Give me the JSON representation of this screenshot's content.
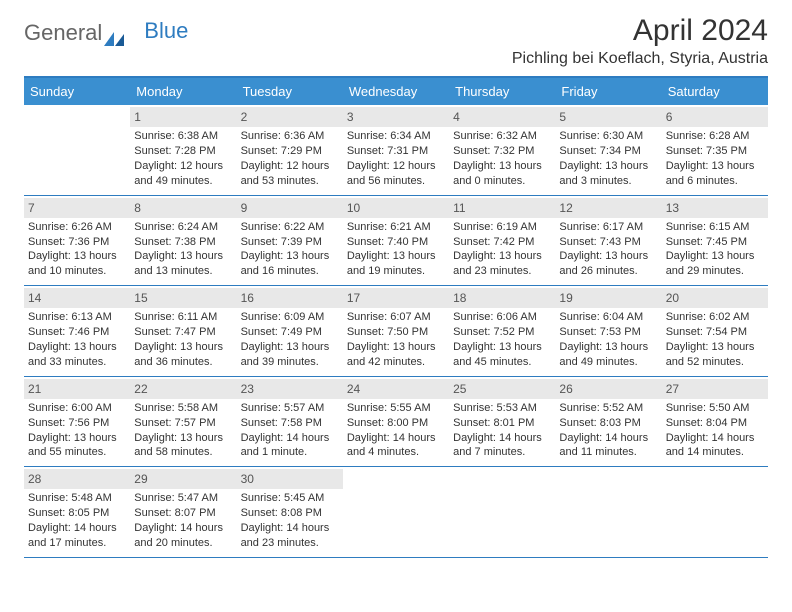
{
  "brand": {
    "part1": "General",
    "part2": "Blue"
  },
  "title": "April 2024",
  "location": "Pichling bei Koeflach, Styria, Austria",
  "colors": {
    "accent": "#3a8fd0",
    "accent_border": "#2e7cc0",
    "daynum_bg": "#e8e8e8",
    "text": "#333333",
    "bg": "#ffffff"
  },
  "day_names": [
    "Sunday",
    "Monday",
    "Tuesday",
    "Wednesday",
    "Thursday",
    "Friday",
    "Saturday"
  ],
  "weeks": [
    [
      null,
      {
        "n": "1",
        "sunrise": "6:38 AM",
        "sunset": "7:28 PM",
        "daylight": "12 hours and 49 minutes."
      },
      {
        "n": "2",
        "sunrise": "6:36 AM",
        "sunset": "7:29 PM",
        "daylight": "12 hours and 53 minutes."
      },
      {
        "n": "3",
        "sunrise": "6:34 AM",
        "sunset": "7:31 PM",
        "daylight": "12 hours and 56 minutes."
      },
      {
        "n": "4",
        "sunrise": "6:32 AM",
        "sunset": "7:32 PM",
        "daylight": "13 hours and 0 minutes."
      },
      {
        "n": "5",
        "sunrise": "6:30 AM",
        "sunset": "7:34 PM",
        "daylight": "13 hours and 3 minutes."
      },
      {
        "n": "6",
        "sunrise": "6:28 AM",
        "sunset": "7:35 PM",
        "daylight": "13 hours and 6 minutes."
      }
    ],
    [
      {
        "n": "7",
        "sunrise": "6:26 AM",
        "sunset": "7:36 PM",
        "daylight": "13 hours and 10 minutes."
      },
      {
        "n": "8",
        "sunrise": "6:24 AM",
        "sunset": "7:38 PM",
        "daylight": "13 hours and 13 minutes."
      },
      {
        "n": "9",
        "sunrise": "6:22 AM",
        "sunset": "7:39 PM",
        "daylight": "13 hours and 16 minutes."
      },
      {
        "n": "10",
        "sunrise": "6:21 AM",
        "sunset": "7:40 PM",
        "daylight": "13 hours and 19 minutes."
      },
      {
        "n": "11",
        "sunrise": "6:19 AM",
        "sunset": "7:42 PM",
        "daylight": "13 hours and 23 minutes."
      },
      {
        "n": "12",
        "sunrise": "6:17 AM",
        "sunset": "7:43 PM",
        "daylight": "13 hours and 26 minutes."
      },
      {
        "n": "13",
        "sunrise": "6:15 AM",
        "sunset": "7:45 PM",
        "daylight": "13 hours and 29 minutes."
      }
    ],
    [
      {
        "n": "14",
        "sunrise": "6:13 AM",
        "sunset": "7:46 PM",
        "daylight": "13 hours and 33 minutes."
      },
      {
        "n": "15",
        "sunrise": "6:11 AM",
        "sunset": "7:47 PM",
        "daylight": "13 hours and 36 minutes."
      },
      {
        "n": "16",
        "sunrise": "6:09 AM",
        "sunset": "7:49 PM",
        "daylight": "13 hours and 39 minutes."
      },
      {
        "n": "17",
        "sunrise": "6:07 AM",
        "sunset": "7:50 PM",
        "daylight": "13 hours and 42 minutes."
      },
      {
        "n": "18",
        "sunrise": "6:06 AM",
        "sunset": "7:52 PM",
        "daylight": "13 hours and 45 minutes."
      },
      {
        "n": "19",
        "sunrise": "6:04 AM",
        "sunset": "7:53 PM",
        "daylight": "13 hours and 49 minutes."
      },
      {
        "n": "20",
        "sunrise": "6:02 AM",
        "sunset": "7:54 PM",
        "daylight": "13 hours and 52 minutes."
      }
    ],
    [
      {
        "n": "21",
        "sunrise": "6:00 AM",
        "sunset": "7:56 PM",
        "daylight": "13 hours and 55 minutes."
      },
      {
        "n": "22",
        "sunrise": "5:58 AM",
        "sunset": "7:57 PM",
        "daylight": "13 hours and 58 minutes."
      },
      {
        "n": "23",
        "sunrise": "5:57 AM",
        "sunset": "7:58 PM",
        "daylight": "14 hours and 1 minute."
      },
      {
        "n": "24",
        "sunrise": "5:55 AM",
        "sunset": "8:00 PM",
        "daylight": "14 hours and 4 minutes."
      },
      {
        "n": "25",
        "sunrise": "5:53 AM",
        "sunset": "8:01 PM",
        "daylight": "14 hours and 7 minutes."
      },
      {
        "n": "26",
        "sunrise": "5:52 AM",
        "sunset": "8:03 PM",
        "daylight": "14 hours and 11 minutes."
      },
      {
        "n": "27",
        "sunrise": "5:50 AM",
        "sunset": "8:04 PM",
        "daylight": "14 hours and 14 minutes."
      }
    ],
    [
      {
        "n": "28",
        "sunrise": "5:48 AM",
        "sunset": "8:05 PM",
        "daylight": "14 hours and 17 minutes."
      },
      {
        "n": "29",
        "sunrise": "5:47 AM",
        "sunset": "8:07 PM",
        "daylight": "14 hours and 20 minutes."
      },
      {
        "n": "30",
        "sunrise": "5:45 AM",
        "sunset": "8:08 PM",
        "daylight": "14 hours and 23 minutes."
      },
      null,
      null,
      null,
      null
    ]
  ],
  "labels": {
    "sunrise": "Sunrise:",
    "sunset": "Sunset:",
    "daylight": "Daylight:"
  }
}
